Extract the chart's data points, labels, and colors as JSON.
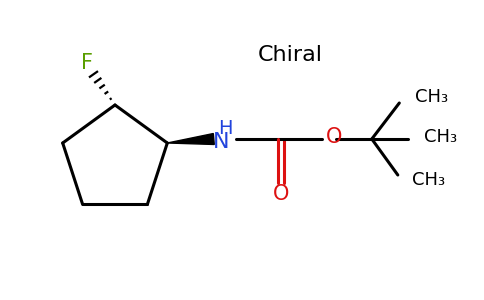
{
  "background_color": "#ffffff",
  "chiral_label": "Chiral",
  "chiral_color": "#000000",
  "F_color": "#5a9e00",
  "NH_color": "#2244dd",
  "O_color": "#dd1111",
  "bond_color": "#000000",
  "bond_lw": 2.2,
  "figsize": [
    4.84,
    3.0
  ],
  "dpi": 100,
  "xlim": [
    0,
    9.68
  ],
  "ylim": [
    0,
    6.0
  ]
}
